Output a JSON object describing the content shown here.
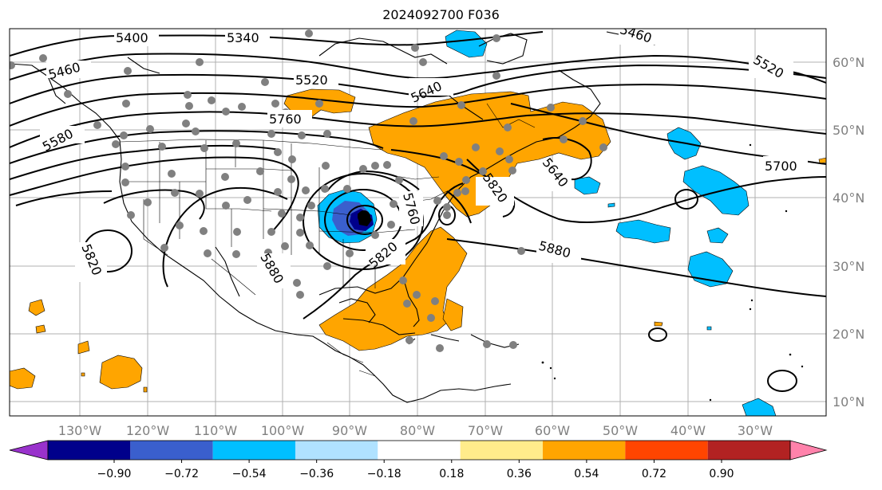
{
  "title": "2024092700 F036",
  "lon_labels": [
    "130°W",
    "120°W",
    "110°W",
    "100°W",
    "90°W",
    "80°W",
    "70°W",
    "60°W",
    "50°W",
    "40°W",
    "30°W"
  ],
  "lat_labels": [
    "60°N",
    "50°N",
    "40°N",
    "30°N",
    "20°N",
    "10°N"
  ],
  "contour_labels": [
    "5400",
    "5340",
    "5460",
    "5460",
    "5520",
    "5520",
    "5580",
    "5640",
    "5760",
    "5700",
    "5640",
    "5820",
    "5820",
    "5820",
    "5880",
    "5880",
    "5760"
  ],
  "colorbar": {
    "tick_labels": [
      "−0.90",
      "−0.72",
      "−0.54",
      "−0.36",
      "−0.18",
      "0.18",
      "0.36",
      "0.54",
      "0.72",
      "0.90"
    ],
    "colors": [
      "#9932cc",
      "#00008b",
      "#3a5fcd",
      "#00bfff",
      "#b0e2ff",
      "#ffffff",
      "#ffec8b",
      "#ffa500",
      "#ff4500",
      "#b22222",
      "#ff82ab"
    ]
  },
  "colors": {
    "grid": "#b0b0b0",
    "positive": "#ffa500",
    "negative": "#00bfff",
    "station": "#808080"
  }
}
